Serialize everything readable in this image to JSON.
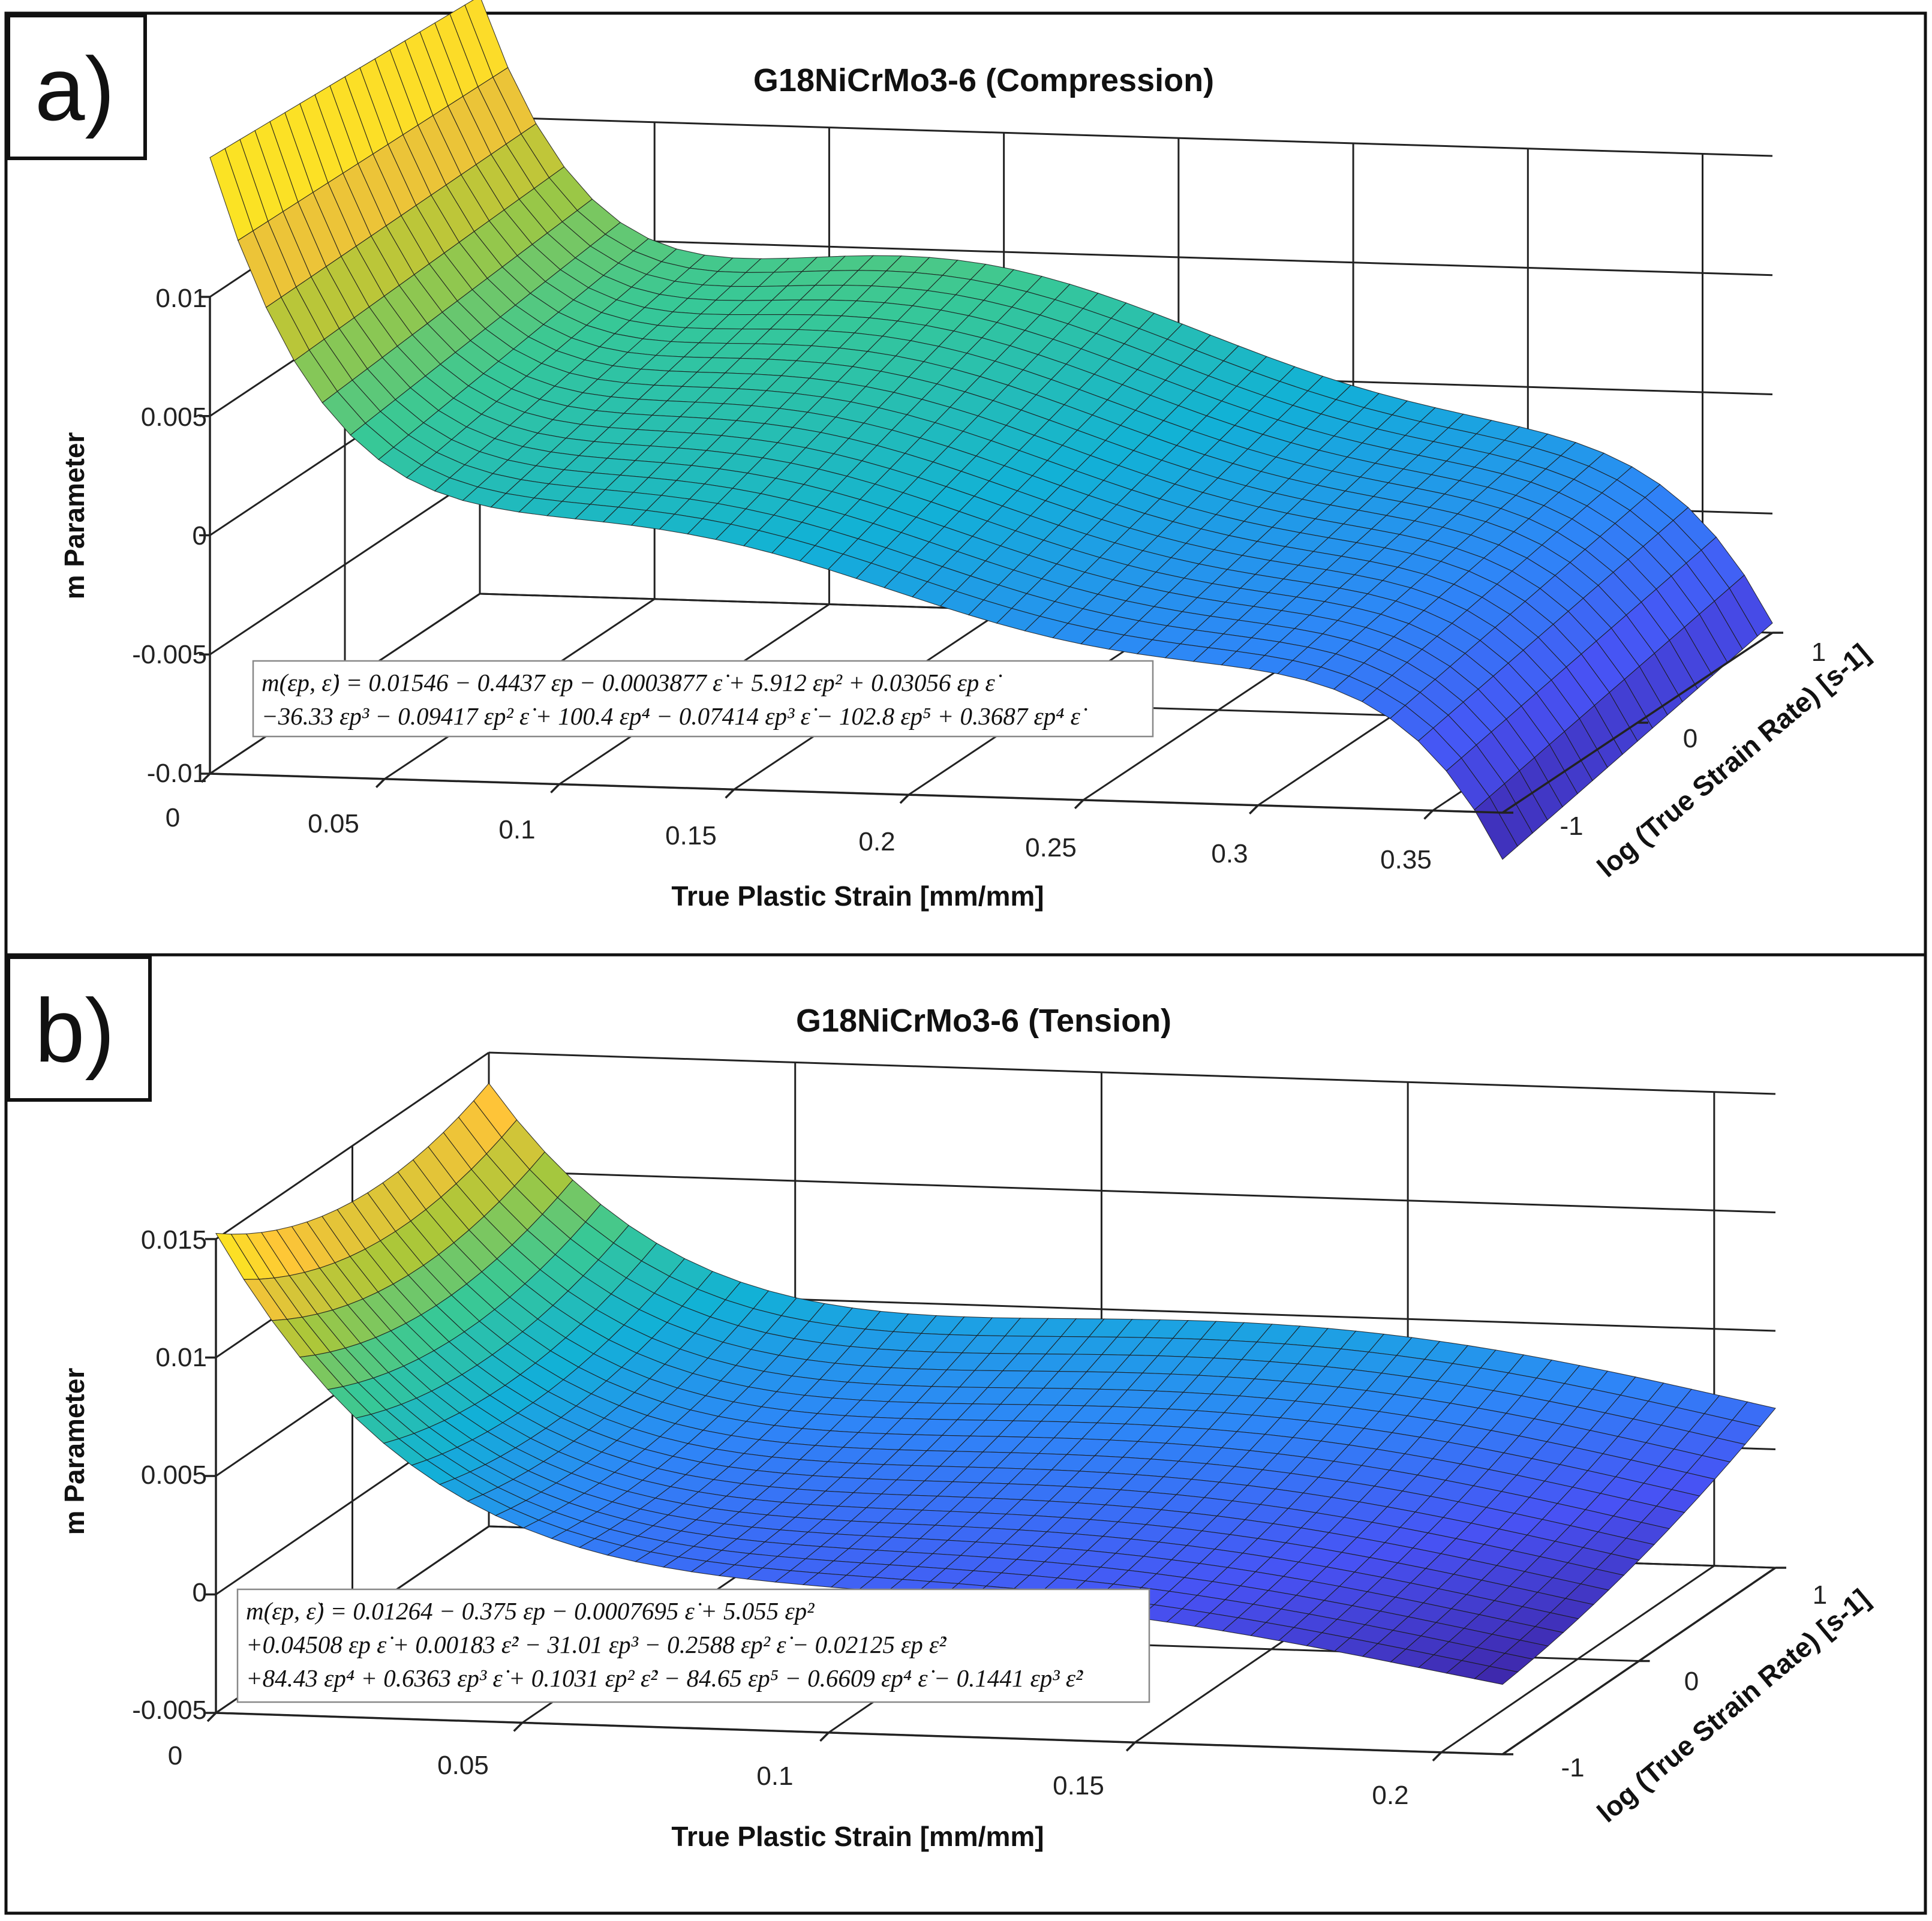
{
  "panels": [
    {
      "id": "a",
      "tag": "a)",
      "equation_lines": [
        "m(εp, ε̇) = 0.01546 − 0.4437 εp − 0.0003877 ε̇ + 5.912 εp² + 0.03056 εp ε̇",
        "−36.33 εp³ − 0.09417 εp² ε̇ + 100.4 εp⁴ − 0.07414 εp³ ε̇ − 102.8 εp⁵ + 0.3687 εp⁴ ε̇"
      ]
    },
    {
      "id": "b",
      "tag": "b)",
      "equation_lines": [
        "m(εp, ε̇) = 0.01264 − 0.375 εp − 0.0007695 ε̇ + 5.055 εp²",
        "+0.04508 εp ε̇ + 0.00183 ε̇² − 31.01 εp³ − 0.2588 εp² ε̇ − 0.02125 εp ε̇²",
        "+84.43 εp⁴ + 0.6363 εp³ ε̇ + 0.1031 εp² ε̇² − 84.65 εp⁵ − 0.6609 εp⁴ ε̇ − 0.1441 εp³ ε̇²"
      ]
    }
  ],
  "chart_data": [
    {
      "type": "surface",
      "title": "G18NiCrMo3-6 (Compression)",
      "xlabel": "True Plastic Strain [mm/mm]",
      "ylabel": "log (True Strain Rate) [s-1]",
      "zlabel": "m Parameter",
      "xlim": [
        0,
        0.37
      ],
      "ylim": [
        -1,
        1
      ],
      "zlim": [
        -0.01,
        0.01
      ],
      "xticks": [
        "0",
        "0.05",
        "0.1",
        "0.15",
        "0.2",
        "0.25",
        "0.3",
        "0.35"
      ],
      "yticks": [
        "-1",
        "0",
        "1"
      ],
      "zticks": [
        "0.01",
        "0.005",
        "0",
        "-0.005",
        "-0.01"
      ],
      "colormap": "parula",
      "mesh": {
        "x_samples": 46,
        "y_samples": 18
      },
      "coefficients": {
        "p00": 0.01546,
        "p10": -0.4437,
        "p01": -0.0003877,
        "p20": 5.912,
        "p11": 0.03056,
        "p30": -36.33,
        "p21": -0.09417,
        "p40": 100.4,
        "p31": -0.07414,
        "p50": -102.8,
        "p41": 0.3687
      }
    },
    {
      "type": "surface",
      "title": "G18NiCrMo3-6 (Tension)",
      "xlabel": "True Plastic Strain [mm/mm]",
      "ylabel": "log (True Strain Rate) [s-1]",
      "zlabel": "m Parameter",
      "xlim": [
        0,
        0.21
      ],
      "ylim": [
        -1,
        1
      ],
      "zlim": [
        -0.005,
        0.015
      ],
      "xticks": [
        "0",
        "0.05",
        "0.1",
        "0.15",
        "0.2"
      ],
      "yticks": [
        "-1",
        "0",
        "1"
      ],
      "zticks": [
        "0.015",
        "0.01",
        "0.005",
        "0",
        "-0.005"
      ],
      "colormap": "parula",
      "mesh": {
        "x_samples": 46,
        "y_samples": 18
      },
      "coefficients": {
        "p00": 0.01264,
        "p10": -0.375,
        "p01": -0.0007695,
        "p20": 5.055,
        "p11": 0.04508,
        "p02": 0.00183,
        "p30": -31.01,
        "p21": -0.2588,
        "p12": -0.02125,
        "p40": 84.43,
        "p31": 0.6363,
        "p22": 0.1031,
        "p50": -84.65,
        "p41": -0.6609,
        "p32": -0.1441
      }
    }
  ]
}
